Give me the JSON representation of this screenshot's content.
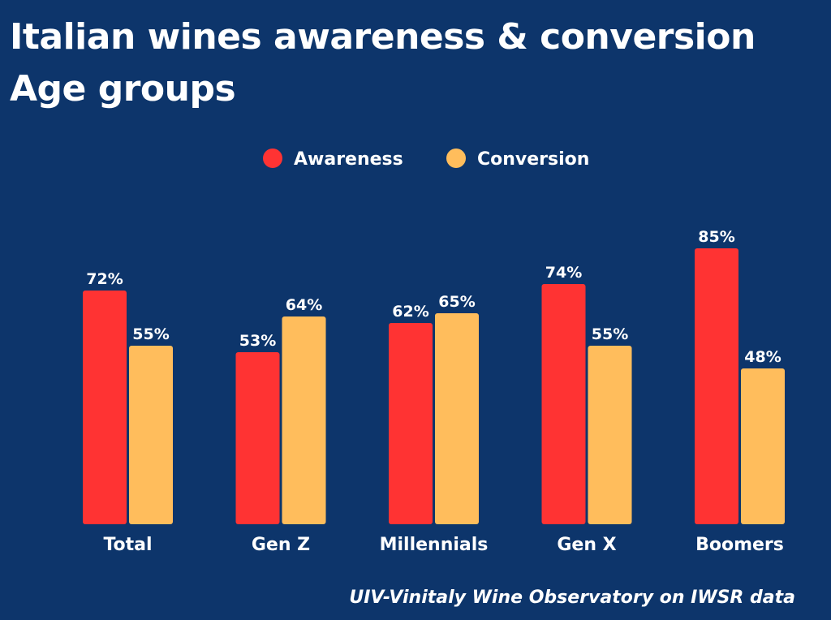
{
  "title_line1": "Italian wines awareness & conversion",
  "title_line2": "Age groups",
  "source": "UIV-Vinitaly Wine Observatory on IWSR data",
  "colors": {
    "background": "#0d356b",
    "awareness": "#ff3333",
    "conversion": "#ffbd5c"
  },
  "chart_data": {
    "type": "bar",
    "categories": [
      "Total",
      "Gen Z",
      "Millennials",
      "Gen X",
      "Boomers"
    ],
    "series": [
      {
        "name": "Awareness",
        "values": [
          72,
          53,
          62,
          74,
          85
        ],
        "labels": [
          "72%",
          "53%",
          "62%",
          "74%",
          "85%"
        ]
      },
      {
        "name": "Conversion",
        "values": [
          55,
          64,
          65,
          55,
          48
        ],
        "labels": [
          "55%",
          "64%",
          "65%",
          "55%",
          "48%"
        ]
      }
    ],
    "ylim": [
      0,
      100
    ],
    "grid": false,
    "legend": "top-center"
  }
}
